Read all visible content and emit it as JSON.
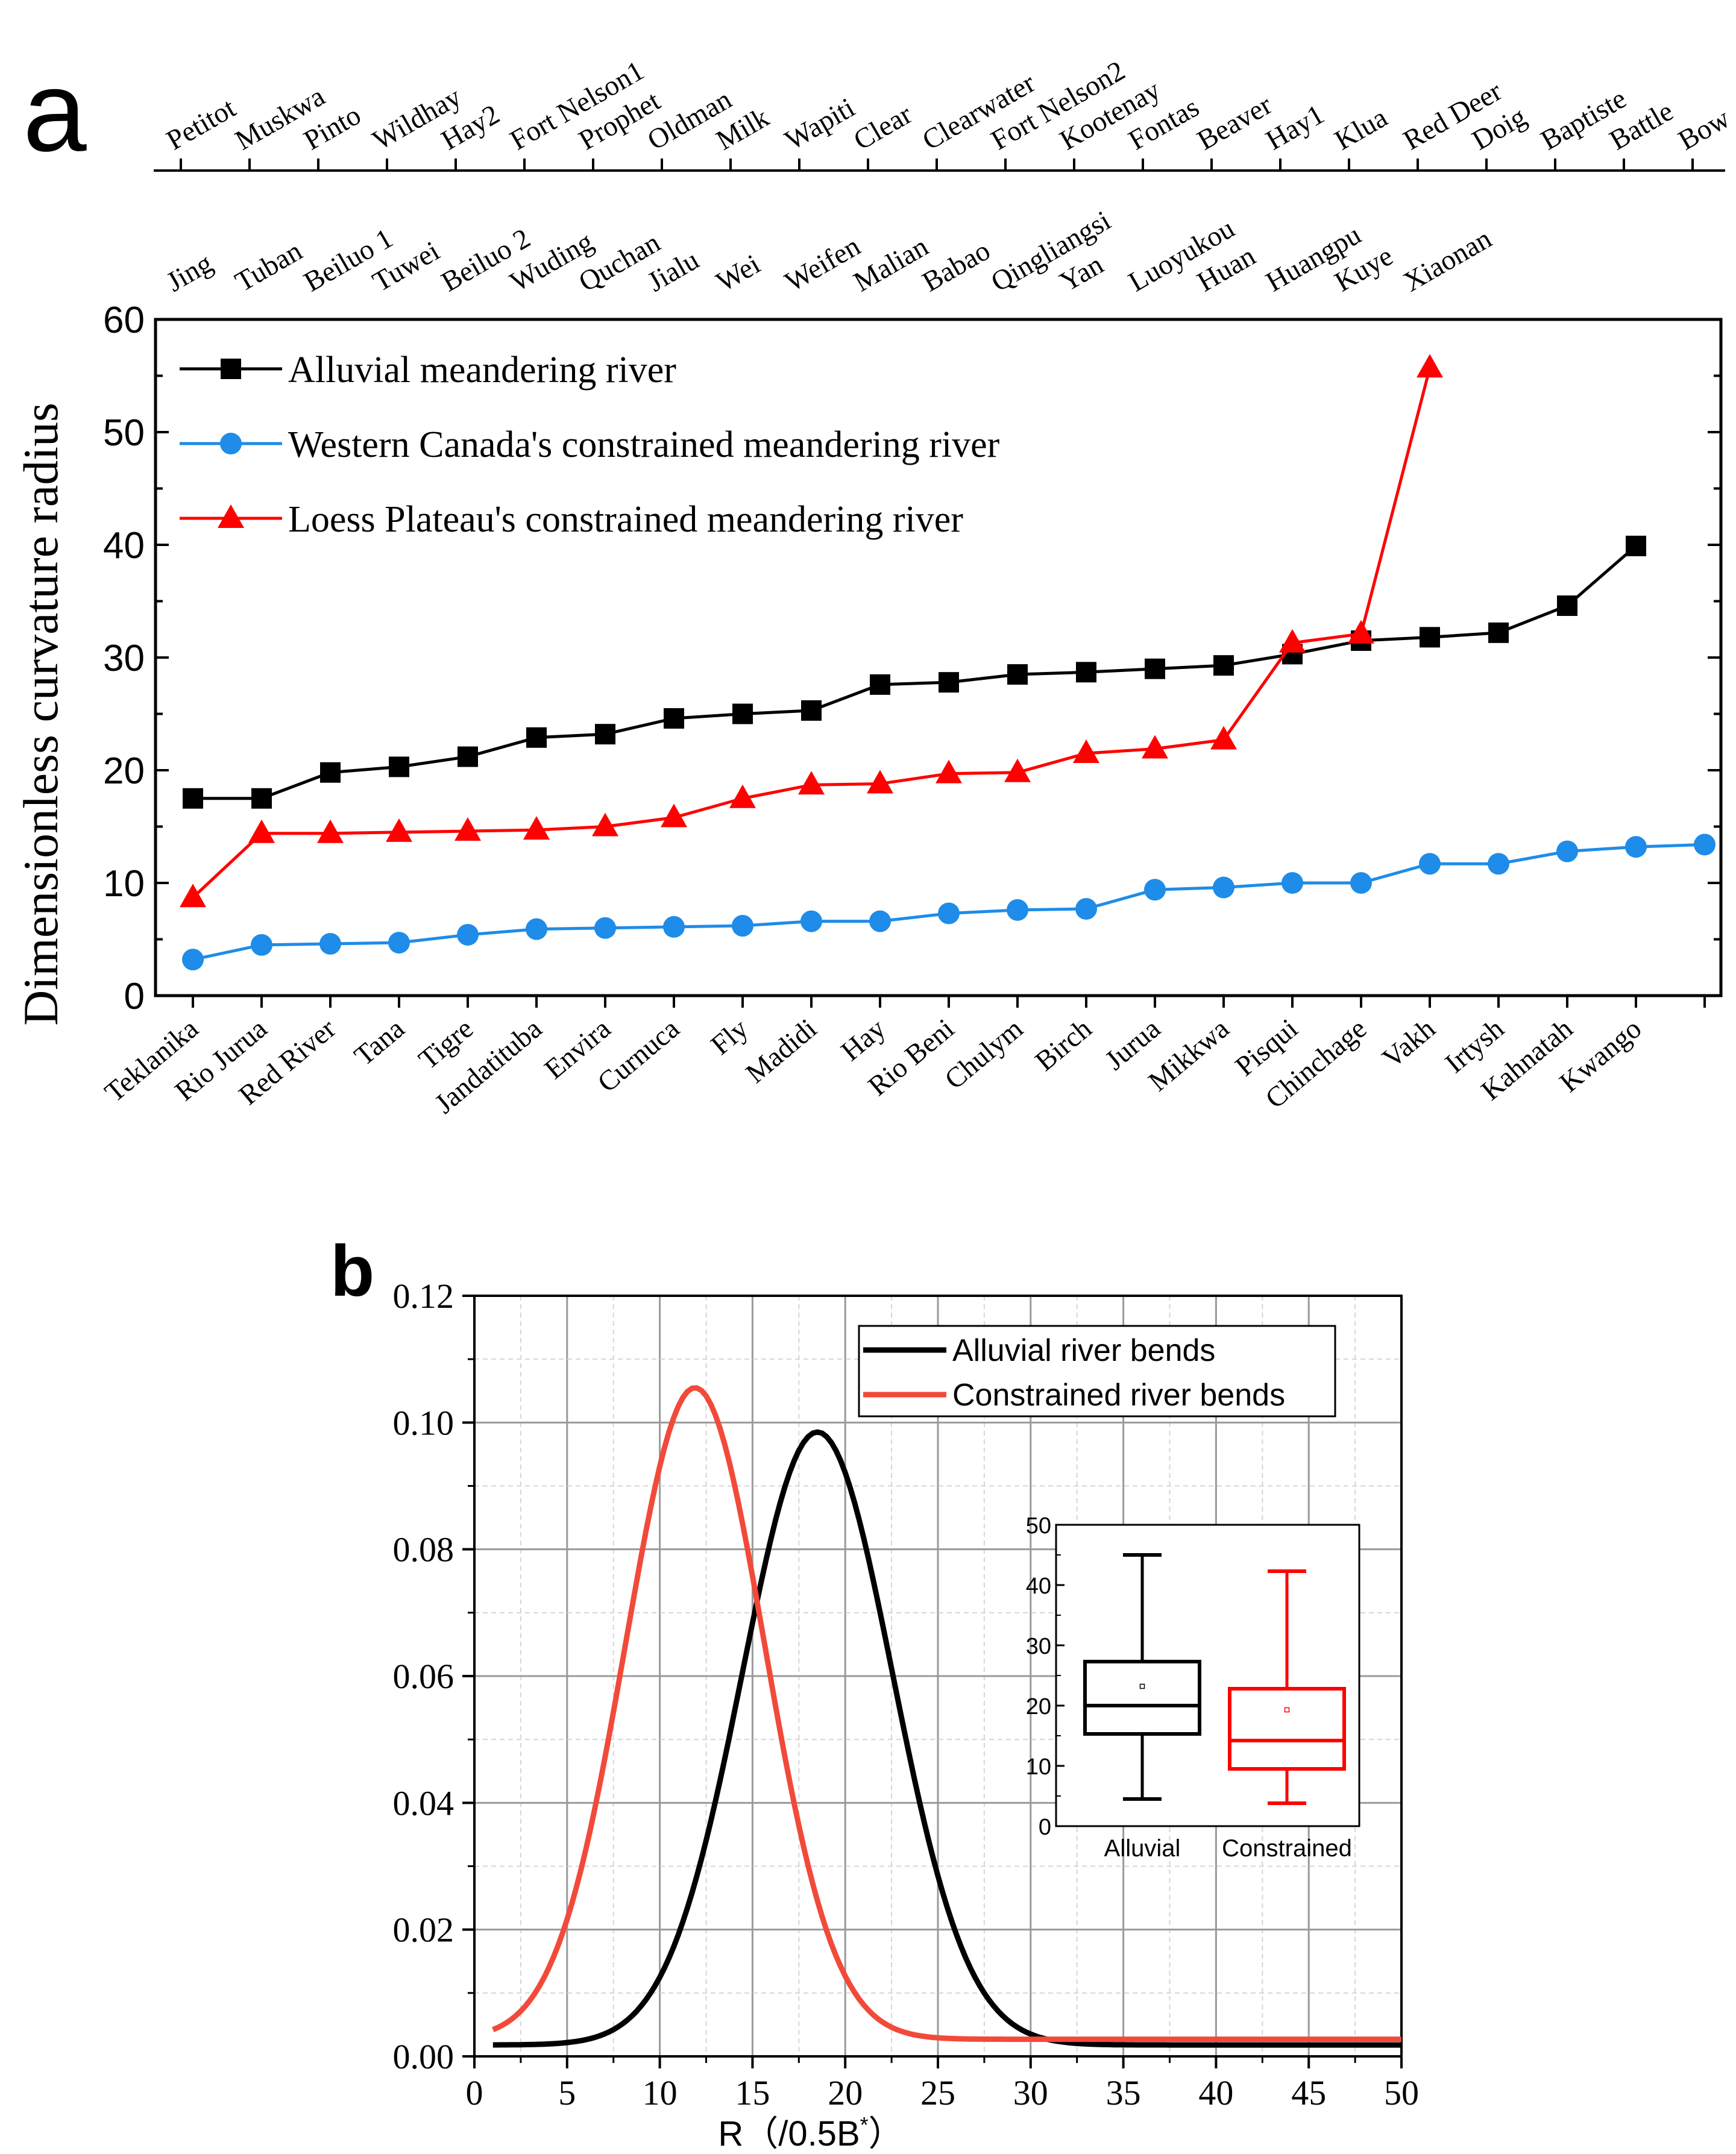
{
  "panel_a": {
    "label": "a",
    "chart_data": {
      "type": "line",
      "ylabel": "Dimensionless curvature radius",
      "ylim": [
        0,
        60
      ],
      "yticks": [
        0,
        10,
        20,
        30,
        40,
        50,
        60
      ],
      "bottom_axis_categories": [
        "Teklanika",
        "Rio Jurua",
        "Red River",
        "Tana",
        "Tigre",
        "Jandatituba",
        "Envira",
        "Curnuca",
        "Fly",
        "Madidi",
        "Hay",
        "Rio Beni",
        "Chulym",
        "Birch",
        "Jurua",
        "Mikkwa",
        "Pisqui",
        "Chinchage",
        "Vakh",
        "Irtysh",
        "Kahnatah",
        "Kwango"
      ],
      "top_axis_categories": [
        "Petitot",
        "Muskwa",
        "Pinto",
        "Wildhay",
        "Hay2",
        "Fort Nelson1",
        "Prophet",
        "Oldman",
        "Milk",
        "Wapiti",
        "Clear",
        "Clearwater",
        "Fort Nelson2",
        "Kootenay",
        "Fontas",
        "Beaver",
        "Hay1",
        "Klua",
        "Red Deer",
        "Doig",
        "Baptiste",
        "Battle",
        "Bow"
      ],
      "inner_axis_categories": [
        "Jing",
        "Tuban",
        "Beiluo 1",
        "Tuwei",
        "Beiluo 2",
        "Wuding",
        "Quchan",
        "Jialu",
        "Wei",
        "Weifen",
        "Malian",
        "Babao",
        "Qingliangsi",
        "Yan",
        "Luoyukou",
        "Huan",
        "Huangpu",
        "Kuye",
        "Xiaonan"
      ],
      "series": [
        {
          "name": "Alluvial meandering river",
          "color": "#000000",
          "marker": "square",
          "values": [
            17.5,
            17.5,
            19.8,
            20.3,
            21.2,
            22.9,
            23.2,
            24.6,
            25.0,
            25.3,
            27.6,
            27.8,
            28.5,
            28.7,
            29.0,
            29.3,
            30.3,
            31.5,
            31.8,
            32.2,
            34.6,
            39.9
          ]
        },
        {
          "name": "Western Canada's constrained meandering river",
          "color": "#1e8ce8",
          "marker": "circle",
          "values": [
            3.2,
            4.5,
            4.6,
            4.7,
            5.4,
            5.9,
            6.0,
            6.1,
            6.2,
            6.6,
            6.6,
            7.3,
            7.6,
            7.7,
            9.4,
            9.6,
            10.0,
            10.0,
            11.7,
            11.7,
            12.8,
            13.2,
            13.4
          ]
        },
        {
          "name": "Loess Plateau's constrained meandering river",
          "color": "#ff0000",
          "marker": "triangle",
          "values": [
            8.7,
            14.4,
            14.4,
            14.5,
            14.6,
            14.7,
            15.0,
            15.8,
            17.5,
            18.7,
            18.8,
            19.7,
            19.8,
            21.5,
            21.9,
            22.7,
            31.3,
            32.1,
            55.7
          ]
        }
      ]
    }
  },
  "panel_b": {
    "label": "b",
    "chart_data": {
      "type": "line",
      "xlabel_main": "R（/0.5B",
      "xlabel_sup": "*",
      "xlabel_close": "）",
      "xlim": [
        0,
        50
      ],
      "ylim": [
        0,
        0.12
      ],
      "xticks": [
        "0",
        "5",
        "10",
        "15",
        "20",
        "25",
        "30",
        "35",
        "40",
        "45",
        "50"
      ],
      "yticks": [
        "0.00",
        "0.02",
        "0.04",
        "0.06",
        "0.08",
        "0.10",
        "0.12"
      ],
      "series": [
        {
          "name": "Alluvial river bends",
          "color": "#000000",
          "x_range": [
            1,
            50
          ],
          "mean": 18.5,
          "sd": 4.05,
          "peak": 0.0985,
          "floor": 0.0018
        },
        {
          "name": "Constrained river bends",
          "color": "#f24a3a",
          "x_range": [
            1,
            50
          ],
          "mean": 11.9,
          "sd": 3.75,
          "peak": 0.1055,
          "floor": 0.0027
        }
      ]
    },
    "inset_chart_data": {
      "type": "box",
      "ylim": [
        0,
        50
      ],
      "yticks": [
        "0",
        "10",
        "20",
        "30",
        "40",
        "50"
      ],
      "boxes": [
        {
          "label": "Alluvial",
          "color": "#000000",
          "min": 4.5,
          "q1": 15.3,
          "median": 20.0,
          "q3": 27.3,
          "max": 45.0,
          "mean": 23.2
        },
        {
          "label": "Constrained",
          "color": "#ff0000",
          "min": 3.8,
          "q1": 9.5,
          "median": 14.2,
          "q3": 22.8,
          "max": 42.3,
          "mean": 19.3
        }
      ]
    }
  }
}
